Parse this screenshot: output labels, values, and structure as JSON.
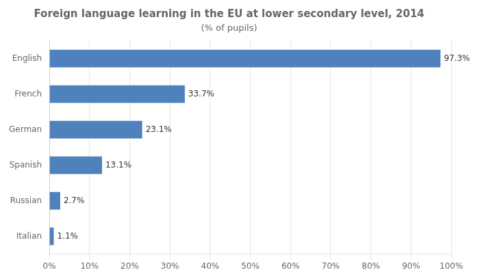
{
  "chart_data": {
    "type": "bar",
    "orientation": "horizontal",
    "title": "Foreign language learning in the EU at lower secondary level, 2014",
    "subtitle": "(% of pupils)",
    "categories": [
      "English",
      "French",
      "German",
      "Spanish",
      "Russian",
      "Italian"
    ],
    "values": [
      97.3,
      33.7,
      23.1,
      13.1,
      2.7,
      1.1
    ],
    "value_labels": [
      "97.3%",
      "33.7%",
      "23.1%",
      "13.1%",
      "2.7%",
      "1.1%"
    ],
    "data_labels": true,
    "color": "#4f81bd",
    "xlim": [
      0,
      100
    ],
    "xticks": [
      {
        "value": 0,
        "label": "0%"
      },
      {
        "value": 10,
        "label": "10%"
      },
      {
        "value": 20,
        "label": "20%"
      },
      {
        "value": 30,
        "label": "30%"
      },
      {
        "value": 40,
        "label": "40%"
      },
      {
        "value": 50,
        "label": "50%"
      },
      {
        "value": 60,
        "label": "60%"
      },
      {
        "value": 70,
        "label": "70%"
      },
      {
        "value": 80,
        "label": "80%"
      },
      {
        "value": 90,
        "label": "90%"
      },
      {
        "value": 100,
        "label": "100%"
      }
    ],
    "grid": true
  }
}
